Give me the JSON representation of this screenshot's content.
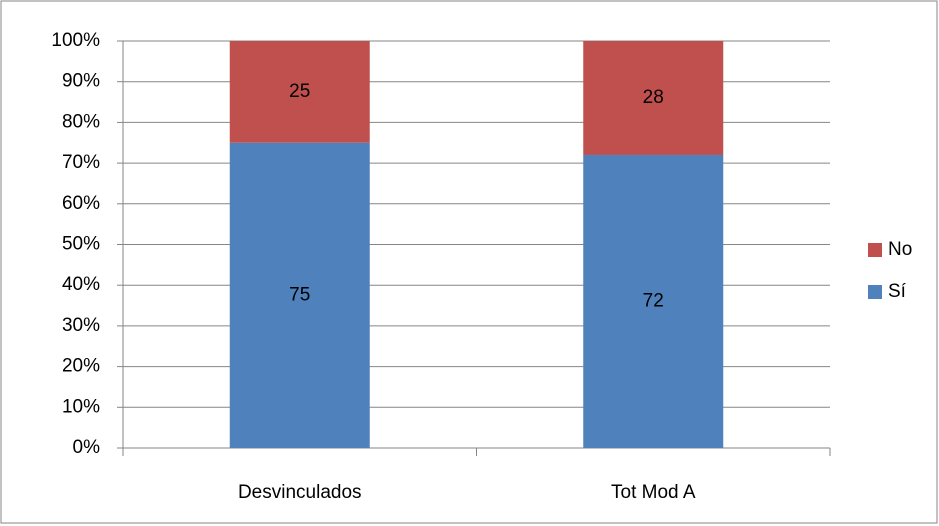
{
  "chart_data": {
    "type": "stacked_bar_100",
    "categories": [
      "Desvinculados",
      "Tot Mod A"
    ],
    "series": [
      {
        "name": "Sí",
        "color": "#4f81bd",
        "values": [
          75,
          72
        ]
      },
      {
        "name": "No",
        "color": "#c0504d",
        "values": [
          25,
          28
        ]
      }
    ],
    "ylim": [
      0,
      100
    ],
    "yticks": [
      {
        "value": 0,
        "label": "0%"
      },
      {
        "value": 10,
        "label": "10%"
      },
      {
        "value": 20,
        "label": "20%"
      },
      {
        "value": 30,
        "label": "30%"
      },
      {
        "value": 40,
        "label": "40%"
      },
      {
        "value": 50,
        "label": "50%"
      },
      {
        "value": 60,
        "label": "60%"
      },
      {
        "value": 70,
        "label": "70%"
      },
      {
        "value": 80,
        "label": "80%"
      },
      {
        "value": 90,
        "label": "90%"
      },
      {
        "value": 100,
        "label": "100%"
      }
    ],
    "grid": true,
    "legend": "right"
  }
}
